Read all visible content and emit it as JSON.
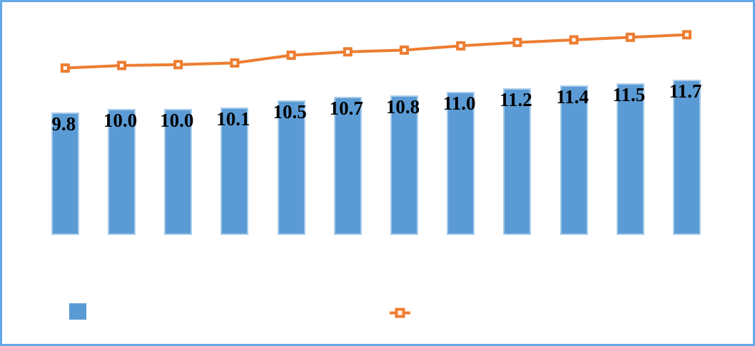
{
  "chart_data": {
    "type": "combo-bar-line",
    "categories": [
      "",
      "",
      "",
      "",
      "",
      "",
      "",
      "",
      "",
      "",
      "",
      ""
    ],
    "series": [
      {
        "name": "bar-series",
        "type": "bar",
        "color": "#5b9bd5",
        "border_color": "#a8cceb",
        "values": [
          9.8,
          10.0,
          10.0,
          10.1,
          10.5,
          10.7,
          10.8,
          11.0,
          11.2,
          11.4,
          11.5,
          11.7
        ],
        "data_labels": [
          "9.8",
          "10.0",
          "10.0",
          "10.1",
          "10.5",
          "10.7",
          "10.8",
          "11.0",
          "11.2",
          "11.4",
          "11.5",
          "11.7"
        ],
        "data_label_color": "#000000"
      },
      {
        "name": "line-series",
        "type": "line",
        "color": "#ed7d31",
        "marker": "square",
        "marker_center": "#ffffff",
        "values_estimated": true,
        "values": [
          12.4,
          12.55,
          12.6,
          12.7,
          13.15,
          13.35,
          13.45,
          13.7,
          13.9,
          14.05,
          14.2,
          14.35
        ]
      }
    ],
    "axes": {
      "x_tick_labels_visible": false,
      "y_tick_labels_visible": false,
      "gridlines": false
    },
    "legend": {
      "visible": true,
      "position": "bottom",
      "entries": [
        {
          "swatch": "bar-square",
          "label": ""
        },
        {
          "swatch": "line-with-square-marker",
          "label": ""
        }
      ]
    }
  },
  "frame": {
    "border_color": "#64a8e8",
    "background": "#ffffff"
  }
}
